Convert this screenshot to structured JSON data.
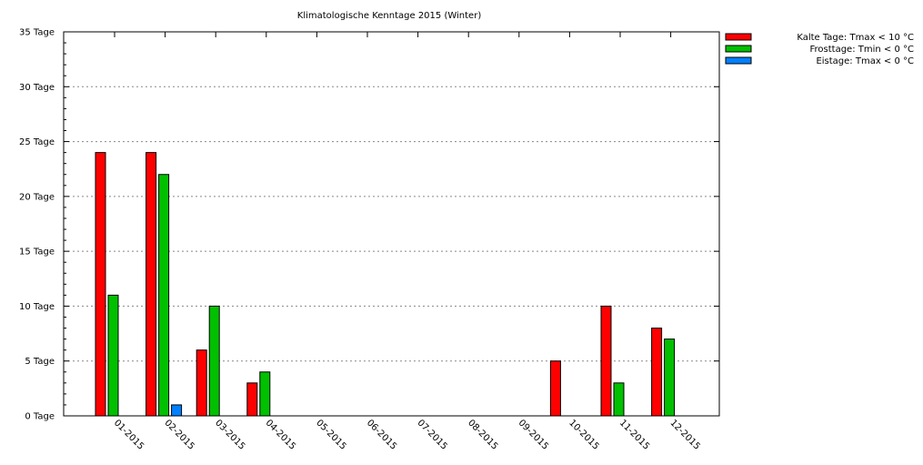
{
  "chart_data": {
    "type": "bar",
    "title": "Klimatologische Kenntage 2015 (Winter)",
    "xlabel": "",
    "ylabel": "",
    "ylim": [
      0,
      35
    ],
    "y_tick_values": [
      0,
      5,
      10,
      15,
      20,
      25,
      30,
      35
    ],
    "y_tick_labels": [
      "0 Tage",
      "5 Tage",
      "10 Tage",
      "15 Tage",
      "20 Tage",
      "25 Tage",
      "30 Tage",
      "35 Tage"
    ],
    "grid": true,
    "legend_position": "top-right",
    "categories": [
      "01-2015",
      "02-2015",
      "03-2015",
      "04-2015",
      "05-2015",
      "06-2015",
      "07-2015",
      "08-2015",
      "09-2015",
      "10-2015",
      "11-2015",
      "12-2015"
    ],
    "series": [
      {
        "name": "Kalte Tage: Tmax < 10 °C",
        "color": "#ff0000",
        "values": [
          24,
          24,
          6,
          3,
          0,
          0,
          0,
          0,
          0,
          5,
          10,
          8
        ]
      },
      {
        "name": "Frosttage: Tmin < 0 °C",
        "color": "#00c000",
        "values": [
          11,
          22,
          10,
          4,
          0,
          0,
          0,
          0,
          0,
          0,
          3,
          7
        ]
      },
      {
        "name": "Eistage: Tmax < 0 °C",
        "color": "#0080ff",
        "values": [
          0,
          1,
          0,
          0,
          0,
          0,
          0,
          0,
          0,
          0,
          0,
          0
        ]
      }
    ]
  }
}
